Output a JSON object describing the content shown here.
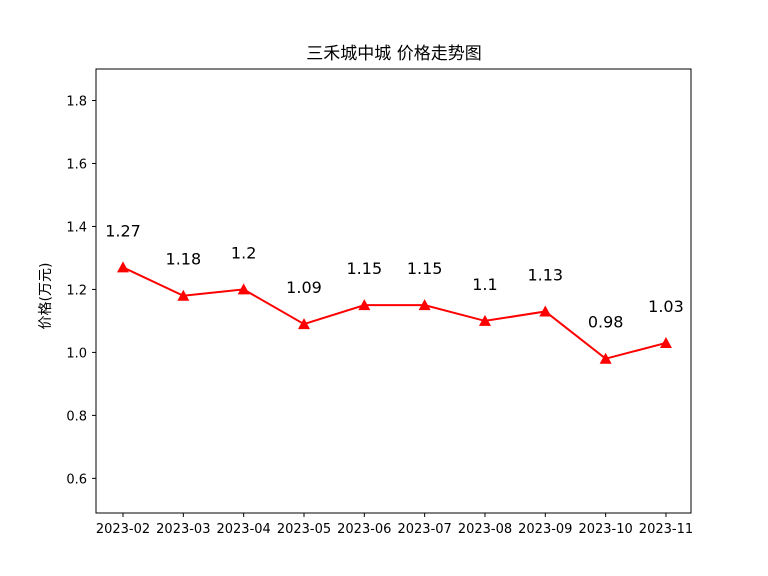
{
  "chart_data": {
    "type": "line",
    "title": "三禾城中城 价格走势图",
    "xlabel": "",
    "ylabel": "价格(万元)",
    "categories": [
      "2023-02",
      "2023-03",
      "2023-04",
      "2023-05",
      "2023-06",
      "2023-07",
      "2023-08",
      "2023-09",
      "2023-10",
      "2023-11"
    ],
    "series": [
      {
        "values": [
          1.27,
          1.18,
          1.2,
          1.09,
          1.15,
          1.15,
          1.1,
          1.13,
          0.98,
          1.03
        ],
        "value_labels": [
          "1.27",
          "1.18",
          "1.2",
          "1.09",
          "1.15",
          "1.15",
          "1.1",
          "1.13",
          "0.98",
          "1.03"
        ],
        "color": "#ff0000",
        "marker": "triangle-up"
      }
    ],
    "ylim": [
      0.49,
      1.9
    ],
    "yticks": [
      0.6,
      0.8,
      1.0,
      1.2,
      1.4,
      1.6,
      1.8
    ],
    "ytick_labels": [
      "0.6",
      "0.8",
      "1.0",
      "1.2",
      "1.4",
      "1.6",
      "1.8"
    ],
    "grid": false,
    "legend": "none"
  }
}
